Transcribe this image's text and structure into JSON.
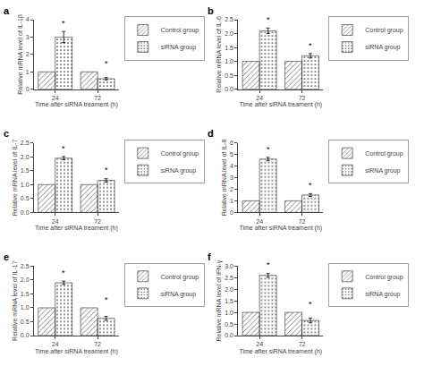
{
  "chart_data": [
    {
      "type": "bar",
      "title": "a",
      "x_label": "Time after siRNA treament (h)",
      "y_label": "Relative mRNA level of IL-1β",
      "categories": [
        "24",
        "72"
      ],
      "series": [
        {
          "name": "Control group",
          "color": "#e8e8e8",
          "values": [
            1.0,
            1.0
          ]
        },
        {
          "name": "siRNA group",
          "color": "#888888",
          "values": [
            3.0,
            0.6
          ],
          "errors": [
            0.32,
            0.07
          ]
        }
      ],
      "ylim": [
        0,
        4
      ],
      "yticks": [
        0,
        1,
        2,
        3,
        4
      ],
      "grid": false,
      "annotations": [
        {
          "text": "*",
          "category": "24",
          "series": "siRNA group"
        },
        {
          "text": "*",
          "category": "72",
          "series": "siRNA group"
        }
      ]
    },
    {
      "type": "bar",
      "title": "b",
      "x_label": "Time after siRNA treament (h)",
      "y_label": "Relative mRNA level of IL-6",
      "categories": [
        "24",
        "72"
      ],
      "series": [
        {
          "name": "Control group",
          "color": "#e8e8e8",
          "values": [
            1.0,
            1.0
          ]
        },
        {
          "name": "siRNA group",
          "color": "#888888",
          "values": [
            2.1,
            1.2
          ],
          "errors": [
            0.1,
            0.08
          ]
        }
      ],
      "ylim": [
        0,
        2.5
      ],
      "yticks": [
        {
          "value": 0.0,
          "label": "0.0"
        },
        {
          "value": 0.5,
          "label": "0.5"
        },
        {
          "value": 1.0,
          "label": "1.0"
        },
        {
          "value": 1.5,
          "label": "1.5"
        },
        {
          "value": 2.0,
          "label": "2.0"
        },
        {
          "value": 2.5,
          "label": "2.5"
        }
      ],
      "grid": false,
      "annotations": [
        {
          "text": "*",
          "category": "24",
          "series": "siRNA group"
        },
        {
          "text": "*",
          "category": "72",
          "series": "siRNA group"
        }
      ]
    },
    {
      "type": "bar",
      "title": "c",
      "x_label": "Time after siRNA treament (h)",
      "y_label": "Relative mRNA level of IL-7",
      "categories": [
        "24",
        "72"
      ],
      "series": [
        {
          "name": "Control group",
          "color": "#e8e8e8",
          "values": [
            1.0,
            1.0
          ]
        },
        {
          "name": "siRNA group",
          "color": "#888888",
          "values": [
            1.95,
            1.15
          ],
          "errors": [
            0.06,
            0.06
          ]
        }
      ],
      "ylim": [
        0,
        2.5
      ],
      "yticks": [
        {
          "value": 0.0,
          "label": "0.0"
        },
        {
          "value": 0.5,
          "label": "0.5"
        },
        {
          "value": 1.0,
          "label": "1.0"
        },
        {
          "value": 1.5,
          "label": "1.5"
        },
        {
          "value": 2.0,
          "label": "2.0"
        },
        {
          "value": 2.5,
          "label": "2.5"
        }
      ],
      "grid": false,
      "annotations": [
        {
          "text": "*",
          "category": "24",
          "series": "siRNA group"
        },
        {
          "text": "*",
          "category": "72",
          "series": "siRNA group"
        }
      ]
    },
    {
      "type": "bar",
      "title": "d",
      "x_label": "Time after siRNA treament (h)",
      "y_label": "Relative mRNA level of IL-8",
      "categories": [
        "24",
        "72"
      ],
      "series": [
        {
          "name": "Control group",
          "color": "#e8e8e8",
          "values": [
            1.0,
            1.0
          ]
        },
        {
          "name": "siRNA group",
          "color": "#888888",
          "values": [
            4.6,
            1.5
          ],
          "errors": [
            0.15,
            0.12
          ]
        }
      ],
      "ylim": [
        0,
        6
      ],
      "yticks": [
        0,
        1,
        2,
        3,
        4,
        5,
        6
      ],
      "grid": false,
      "annotations": [
        {
          "text": "*",
          "category": "24",
          "series": "siRNA group"
        },
        {
          "text": "*",
          "category": "72",
          "series": "siRNA group"
        }
      ]
    },
    {
      "type": "bar",
      "title": "e",
      "x_label": "Time after siRNA treament (h)",
      "y_label": "Relative mRNA level of IL-17",
      "categories": [
        "24",
        "72"
      ],
      "series": [
        {
          "name": "Control group",
          "color": "#e8e8e8",
          "values": [
            1.0,
            1.0
          ]
        },
        {
          "name": "siRNA group",
          "color": "#888888",
          "values": [
            1.9,
            0.62
          ],
          "errors": [
            0.06,
            0.07
          ]
        }
      ],
      "ylim": [
        0,
        2.5
      ],
      "yticks": [
        {
          "value": 0.0,
          "label": "0.0"
        },
        {
          "value": 0.5,
          "label": "0.5"
        },
        {
          "value": 1.0,
          "label": "1.0"
        },
        {
          "value": 1.5,
          "label": "1.5"
        },
        {
          "value": 2.0,
          "label": "2.0"
        },
        {
          "value": 2.5,
          "label": "2.5"
        }
      ],
      "grid": false,
      "annotations": [
        {
          "text": "*",
          "category": "24",
          "series": "siRNA group"
        },
        {
          "text": "*",
          "category": "72",
          "series": "siRNA group"
        }
      ]
    },
    {
      "type": "bar",
      "title": "f",
      "x_label": "Time after siRNA treament (h)",
      "y_label": "Relative mRNA level of IFN-γ",
      "categories": [
        "24",
        "72"
      ],
      "series": [
        {
          "name": "Control group",
          "color": "#e8e8e8",
          "values": [
            1.0,
            1.0
          ]
        },
        {
          "name": "siRNA group",
          "color": "#888888",
          "values": [
            2.6,
            0.65
          ],
          "errors": [
            0.08,
            0.1
          ]
        }
      ],
      "ylim": [
        0,
        3
      ],
      "yticks": [
        {
          "value": 0.0,
          "label": "0.0"
        },
        {
          "value": 0.5,
          "label": "0.5"
        },
        {
          "value": 1.0,
          "label": "1.0"
        },
        {
          "value": 1.5,
          "label": "1.5"
        },
        {
          "value": 2.0,
          "label": "2.0"
        },
        {
          "value": 2.5,
          "label": "2.5"
        },
        {
          "value": 3.0,
          "label": "3.0"
        }
      ],
      "grid": false,
      "annotations": [
        {
          "text": "*",
          "category": "24",
          "series": "siRNA group"
        },
        {
          "text": "*",
          "category": "72",
          "series": "siRNA group"
        }
      ]
    }
  ]
}
